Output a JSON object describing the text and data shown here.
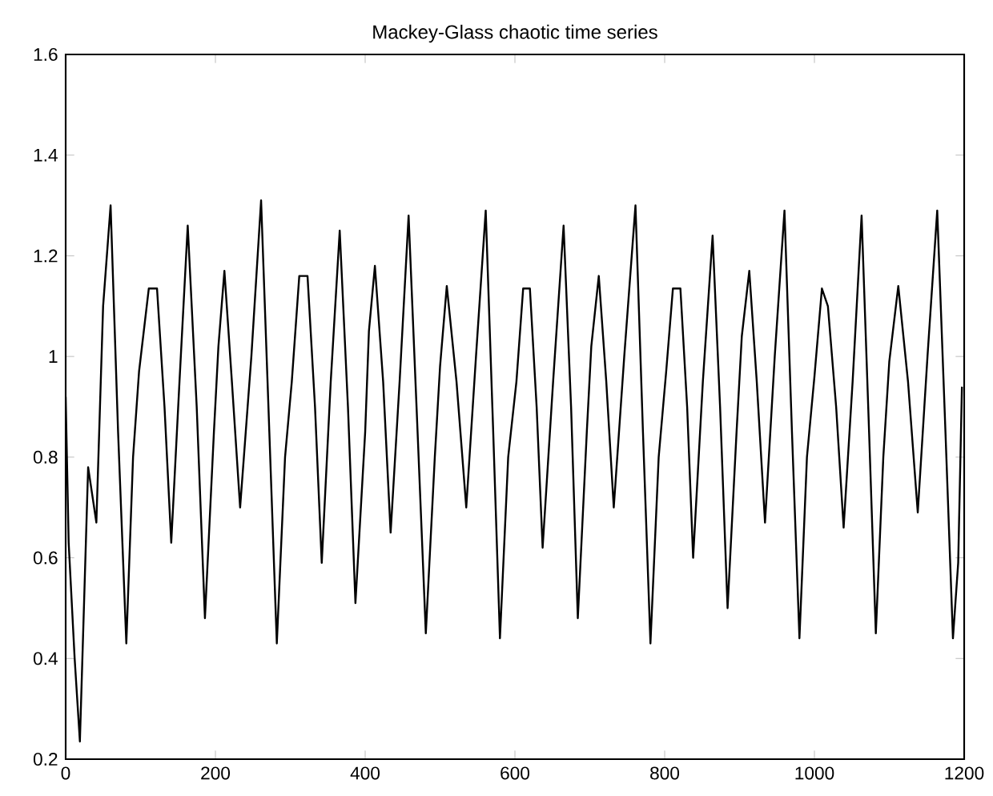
{
  "chart_data": {
    "type": "line",
    "title": "Mackey-Glass chaotic time series",
    "xlim": [
      0,
      1200
    ],
    "xticks": [
      0,
      200,
      400,
      600,
      800,
      1000,
      1200
    ],
    "ylim": [
      0.2,
      1.6
    ],
    "yticks": [
      0.2,
      0.4,
      0.6,
      0.8,
      1,
      1.2,
      1.4,
      1.6
    ],
    "series": [
      {
        "color": "#000000",
        "x": [
          0,
          4,
          12,
          19,
          30,
          41,
          50,
          60,
          70,
          81,
          90,
          98,
          111,
          122,
          132,
          141,
          152,
          163,
          175,
          186,
          198,
          204,
          212,
          222,
          233,
          248,
          261,
          272,
          282,
          293,
          302,
          312,
          323,
          333,
          342,
          354,
          366,
          377,
          387,
          400,
          405,
          413,
          424,
          434,
          446,
          458,
          470,
          481,
          493,
          500,
          509,
          522,
          535,
          548,
          561,
          571,
          580,
          591,
          602,
          611,
          620,
          629,
          637,
          651,
          665,
          675,
          684,
          696,
          702,
          712,
          722,
          732,
          746,
          761,
          771,
          781,
          792,
          802,
          811,
          821,
          830,
          838,
          851,
          864,
          874,
          884,
          896,
          903,
          913,
          923,
          934,
          947,
          960,
          970,
          980,
          990,
          1000,
          1010,
          1018,
          1029,
          1039,
          1051,
          1063,
          1073,
          1082,
          1092,
          1100,
          1112,
          1125,
          1138,
          1151,
          1164,
          1175,
          1185,
          1192,
          1197
        ],
        "values": [
          0.92,
          0.63,
          0.4,
          0.235,
          0.78,
          0.67,
          1.1,
          1.3,
          0.85,
          0.43,
          0.8,
          0.97,
          1.135,
          1.135,
          0.9,
          0.63,
          0.95,
          1.26,
          0.9,
          0.48,
          0.85,
          1.02,
          1.17,
          0.95,
          0.7,
          1.0,
          1.31,
          0.85,
          0.43,
          0.8,
          0.95,
          1.16,
          1.16,
          0.9,
          0.59,
          0.95,
          1.25,
          0.9,
          0.51,
          0.85,
          1.05,
          1.18,
          0.95,
          0.65,
          0.95,
          1.28,
          0.85,
          0.45,
          0.8,
          0.98,
          1.14,
          0.95,
          0.7,
          1.0,
          1.29,
          0.85,
          0.44,
          0.8,
          0.95,
          1.135,
          1.135,
          0.9,
          0.62,
          0.95,
          1.26,
          0.9,
          0.48,
          0.85,
          1.02,
          1.16,
          0.95,
          0.7,
          1.0,
          1.3,
          0.85,
          0.43,
          0.8,
          0.97,
          1.135,
          1.135,
          0.9,
          0.6,
          0.95,
          1.24,
          0.9,
          0.5,
          0.85,
          1.04,
          1.17,
          0.95,
          0.67,
          1.0,
          1.29,
          0.85,
          0.44,
          0.8,
          0.96,
          1.135,
          1.1,
          0.9,
          0.66,
          0.95,
          1.28,
          0.85,
          0.45,
          0.8,
          0.99,
          1.14,
          0.95,
          0.69,
          1.0,
          1.29,
          0.85,
          0.44,
          0.59,
          0.94
        ]
      }
    ]
  }
}
